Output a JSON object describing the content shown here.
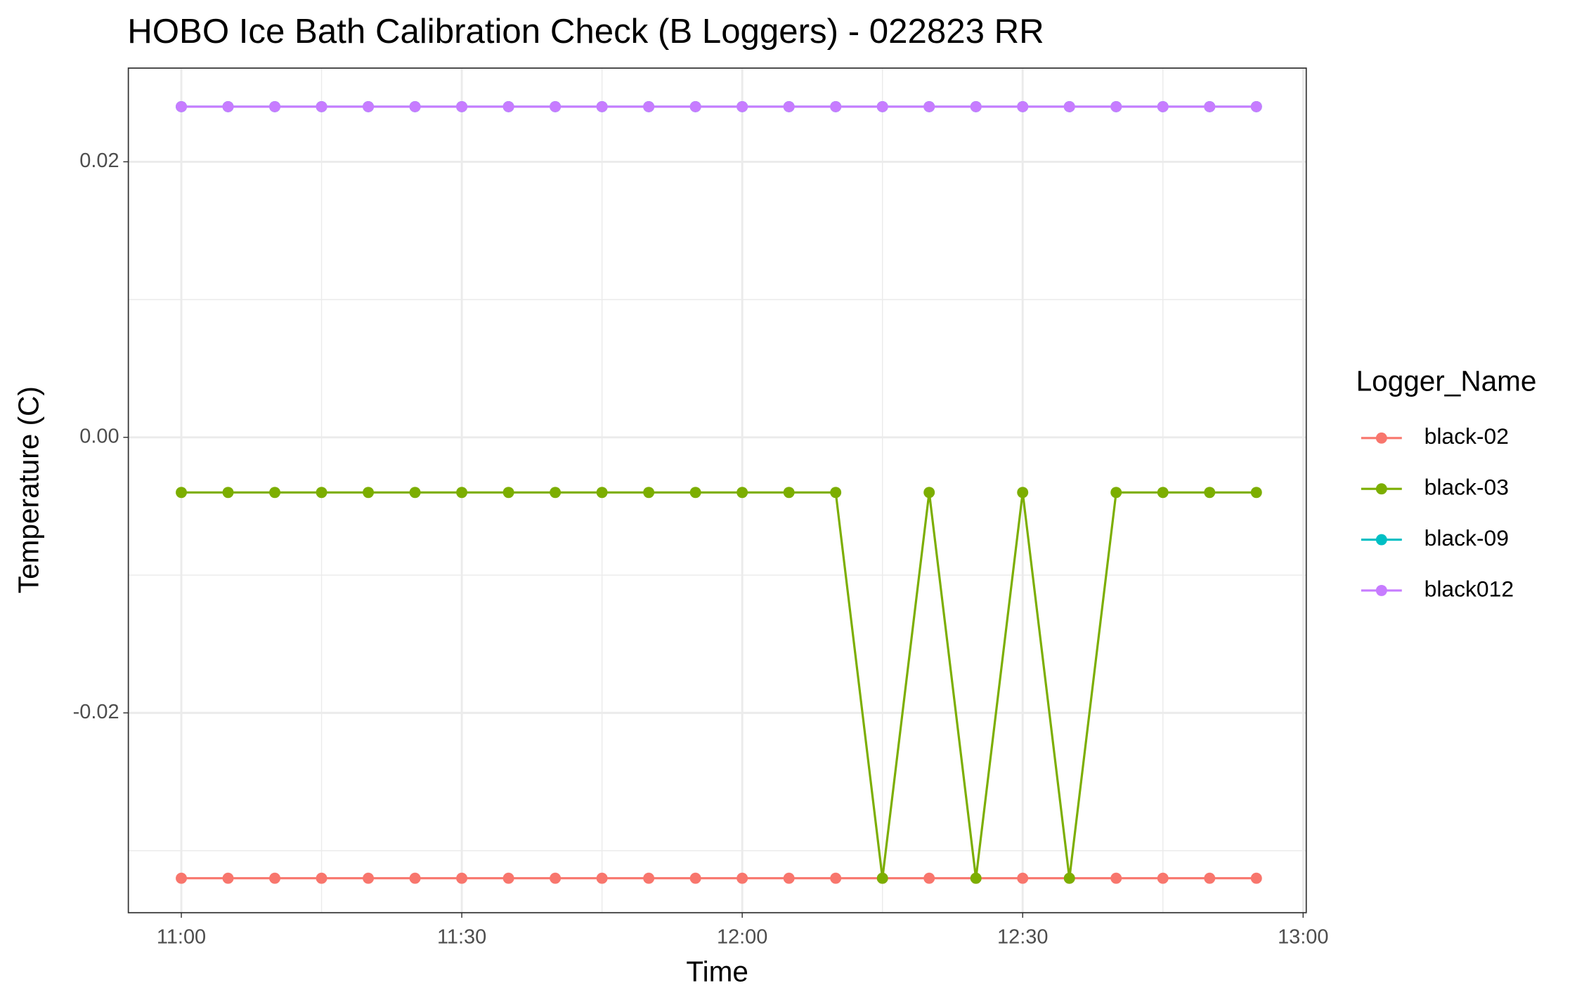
{
  "chart_data": {
    "type": "line",
    "title": "HOBO Ice Bath Calibration Check (B Loggers) - 022823 RR",
    "x_label": "Time",
    "y_label": "Temperature (C)",
    "legend_title": "Logger_Name",
    "x": [
      "11:00",
      "11:05",
      "11:10",
      "11:15",
      "11:20",
      "11:25",
      "11:30",
      "11:35",
      "11:40",
      "11:45",
      "11:50",
      "11:55",
      "12:00",
      "12:05",
      "12:10",
      "12:15",
      "12:20",
      "12:25",
      "12:30",
      "12:35",
      "12:40",
      "12:45",
      "12:50",
      "12:55"
    ],
    "series": [
      {
        "name": "black-02",
        "color": "#f8766d",
        "values": [
          -0.032,
          -0.032,
          -0.032,
          -0.032,
          -0.032,
          -0.032,
          -0.032,
          -0.032,
          -0.032,
          -0.032,
          -0.032,
          -0.032,
          -0.032,
          -0.032,
          -0.032,
          -0.032,
          -0.032,
          -0.032,
          -0.032,
          -0.032,
          -0.032,
          -0.032,
          -0.032,
          -0.032
        ]
      },
      {
        "name": "black-03",
        "color": "#7cae00",
        "values": [
          -0.004,
          -0.004,
          -0.004,
          -0.004,
          -0.004,
          -0.004,
          -0.004,
          -0.004,
          -0.004,
          -0.004,
          -0.004,
          -0.004,
          -0.004,
          -0.004,
          -0.004,
          -0.032,
          -0.004,
          -0.032,
          -0.004,
          -0.032,
          -0.004,
          -0.004,
          -0.004,
          -0.004
        ]
      },
      {
        "name": "black-09",
        "color": "#00bfc4",
        "values": [
          0.024,
          0.024,
          0.024,
          0.024,
          0.024,
          0.024,
          0.024,
          0.024,
          0.024,
          0.024,
          0.024,
          0.024,
          0.024,
          0.024,
          0.024,
          0.024,
          0.024,
          0.024,
          0.024,
          0.024,
          0.024,
          0.024,
          0.024,
          0.024
        ]
      },
      {
        "name": "black012",
        "color": "#c77cff",
        "values": [
          0.024,
          0.024,
          0.024,
          0.024,
          0.024,
          0.024,
          0.024,
          0.024,
          0.024,
          0.024,
          0.024,
          0.024,
          0.024,
          0.024,
          0.024,
          0.024,
          0.024,
          0.024,
          0.024,
          0.024,
          0.024,
          0.024,
          0.024,
          0.024
        ]
      }
    ],
    "xlim": [
      "10:54:20",
      "13:00:20"
    ],
    "xticks": [
      "11:00",
      "11:30",
      "12:00",
      "12:30",
      "13:00"
    ],
    "xminor": [
      "11:15",
      "11:45",
      "12:15",
      "12:45"
    ],
    "ylim": [
      -0.0345,
      0.0268
    ],
    "yticks": [
      -0.02,
      {
        "value": 0,
        "label": "0.00"
      },
      0.02
    ],
    "yminor": [
      -0.03,
      -0.01,
      0.01
    ],
    "grid": true
  }
}
